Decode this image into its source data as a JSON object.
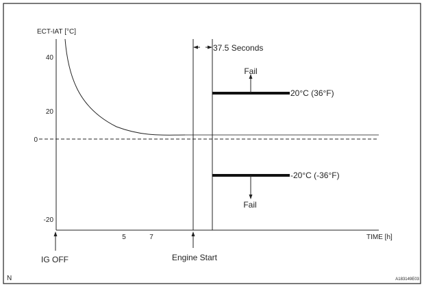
{
  "y_axis": {
    "label": "ECT-IAT [°C]",
    "ticks": [
      "40",
      "20",
      "0",
      "-20"
    ]
  },
  "x_axis": {
    "label": "TIME [h]",
    "ticks": [
      "5",
      "7"
    ]
  },
  "markers": {
    "ig_off": "IG OFF",
    "engine_start": "Engine Start"
  },
  "interval_label": "37.5 Seconds",
  "thresholds": {
    "upper": {
      "label": "20°C (36°F)",
      "fail": "Fail"
    },
    "lower": {
      "label": "-20°C (-36°F)",
      "fail": "Fail"
    }
  },
  "corner_letter": "N",
  "figure_id": "A183149E03"
}
